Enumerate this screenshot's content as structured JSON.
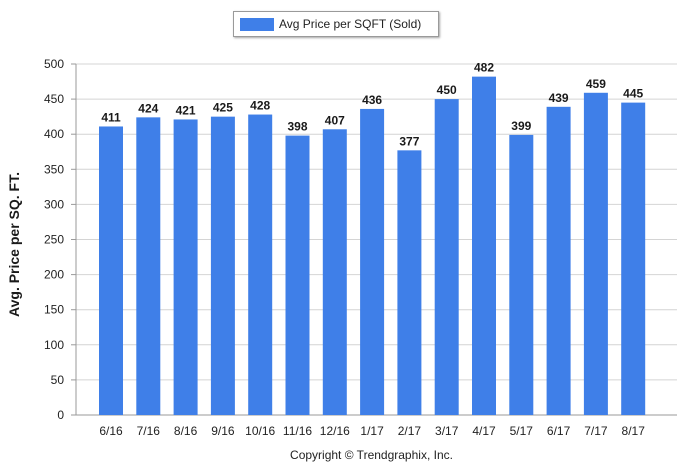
{
  "chart_data": {
    "type": "bar",
    "categories": [
      "6/16",
      "7/16",
      "8/16",
      "9/16",
      "10/16",
      "11/16",
      "12/16",
      "1/17",
      "2/17",
      "3/17",
      "4/17",
      "5/17",
      "6/17",
      "7/17",
      "8/17"
    ],
    "series": [
      {
        "name": "Avg Price per SQFT (Sold)",
        "values": [
          411,
          424,
          421,
          425,
          428,
          398,
          407,
          436,
          377,
          450,
          482,
          399,
          439,
          459,
          445
        ]
      }
    ],
    "xlabel": "",
    "ylabel": "Avg. Price per SQ. FT.",
    "ylim": [
      0,
      500
    ],
    "yticks": [
      0,
      50,
      100,
      150,
      200,
      250,
      300,
      350,
      400,
      450,
      500
    ],
    "grid": "horizontal",
    "legend_position": "top-center",
    "data_labels": true,
    "bar_color": "#3f7fe8"
  },
  "footer": {
    "copyright": "Copyright © Trendgraphix, Inc."
  }
}
